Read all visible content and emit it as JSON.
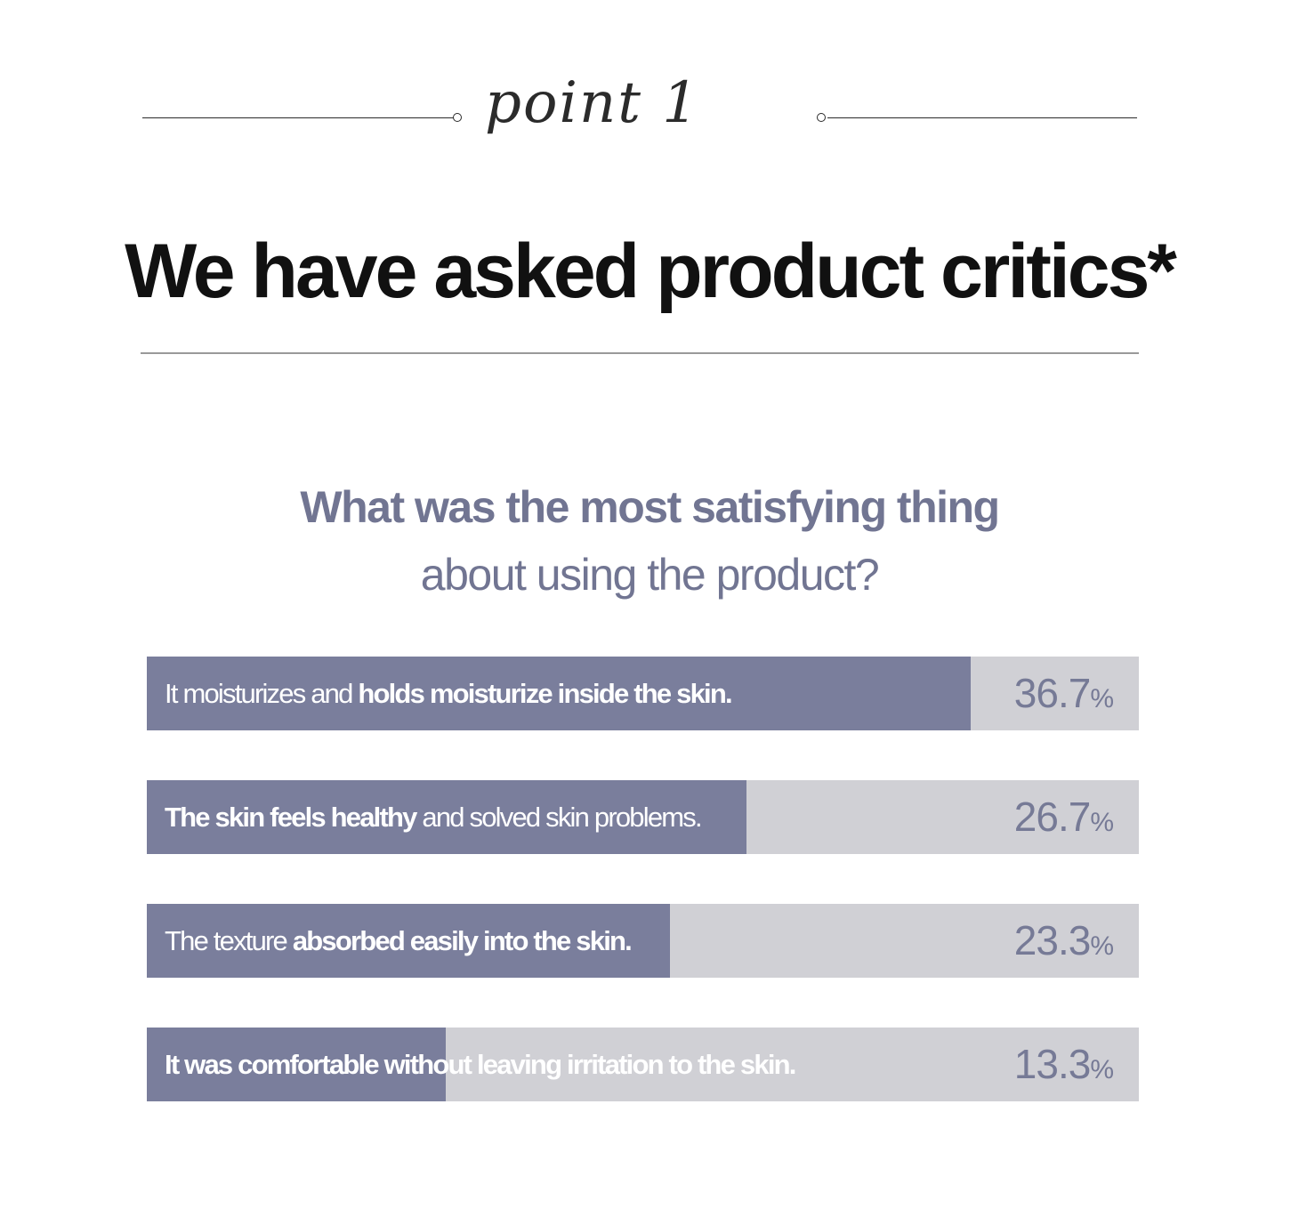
{
  "header": {
    "script_label": "point 1",
    "title": "We have asked product critics*"
  },
  "question": {
    "line1": "What was the most satisfying thing",
    "line2": "about using the product?"
  },
  "colors": {
    "fill": "#7a7e9c",
    "track": "#d0d0d5",
    "value_text": "#767a96",
    "question_text": "#717592"
  },
  "chart_data": {
    "type": "bar",
    "orientation": "horizontal",
    "unit": "%",
    "xlim": [
      0,
      100
    ],
    "categories": [
      "It moisturizes and holds moisturize inside the skin.",
      "The skin feels healthy and solved skin problems.",
      "The texture absorbed easily into the skin.",
      "It was comfortable without leaving irritation to the skin."
    ],
    "values": [
      36.7,
      26.7,
      23.3,
      13.3
    ],
    "label_parts": [
      [
        {
          "text": "It moisturizes and ",
          "bold": false
        },
        {
          "text": "holds moisturize inside the skin.",
          "bold": true
        }
      ],
      [
        {
          "text": "The skin feels healthy",
          "bold": true
        },
        {
          "text": " and solved skin problems.",
          "bold": false
        }
      ],
      [
        {
          "text": "The texture ",
          "bold": false
        },
        {
          "text": "absorbed easily into the skin.",
          "bold": true
        }
      ],
      [
        {
          "text": "It was comfortable without leaving irritation to the skin.",
          "bold": true
        }
      ]
    ],
    "value_labels": [
      "36.7",
      "26.7",
      "23.3",
      "13.3"
    ]
  }
}
